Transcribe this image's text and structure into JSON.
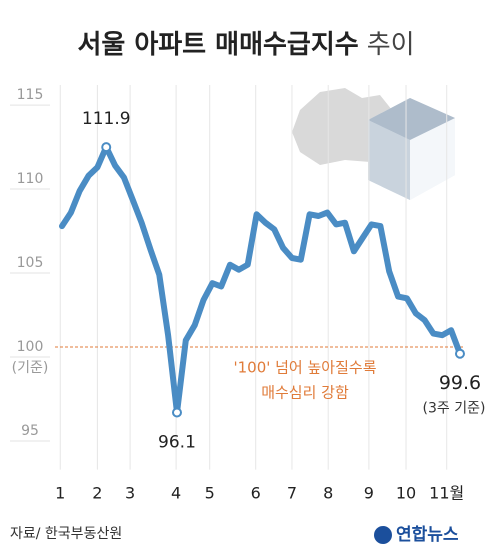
{
  "chart_data": {
    "type": "line",
    "title": "서울 아파트 매매수급지수",
    "title_suffix": "추이",
    "x": [
      0,
      1,
      2,
      3,
      4,
      5,
      6,
      7,
      8,
      9,
      10,
      11,
      12,
      13,
      14,
      15,
      16,
      17,
      18,
      19,
      20,
      21,
      22,
      23,
      24,
      25,
      26,
      27,
      28,
      29,
      30,
      31,
      32,
      33,
      34,
      35,
      36,
      37,
      38,
      39,
      40,
      41,
      42,
      43,
      44,
      45
    ],
    "values": [
      107.2,
      108.0,
      109.3,
      110.2,
      110.7,
      111.9,
      110.8,
      110.1,
      108.75,
      107.4,
      105.8,
      104.3,
      100.7,
      96.1,
      100.4,
      101.3,
      102.8,
      103.8,
      103.6,
      104.9,
      104.6,
      104.9,
      107.9,
      107.4,
      107.0,
      105.9,
      105.3,
      105.2,
      107.9,
      107.8,
      108.0,
      107.3,
      107.4,
      105.7,
      106.5,
      107.3,
      107.2,
      104.5,
      103.0,
      102.9,
      102.0,
      101.6,
      100.8,
      100.7,
      101.0,
      99.6
    ],
    "color": "#4a8cc4",
    "xlim": [
      -0.5,
      45.5
    ],
    "xticks": [
      {
        "value": -0.2,
        "label": "1"
      },
      {
        "value": 4,
        "label": "2"
      },
      {
        "value": 7.7,
        "label": "3"
      },
      {
        "value": 12.9,
        "label": "4"
      },
      {
        "value": 16.7,
        "label": "5"
      },
      {
        "value": 21.9,
        "label": "6"
      },
      {
        "value": 26,
        "label": "7"
      },
      {
        "value": 30.1,
        "label": "8"
      },
      {
        "value": 34.7,
        "label": "9"
      },
      {
        "value": 38.9,
        "label": "10"
      },
      {
        "value": 43.5,
        "label": "11월"
      }
    ],
    "ylim": [
      92.7,
      115.6
    ],
    "yticks": [
      95,
      100,
      105,
      110,
      115
    ],
    "baseline": 100,
    "baseline_label": "(기준)",
    "baseline_color": "#e07b39",
    "annotation_lines": [
      "'100' 넘어 높아질수록",
      "매수심리 강함"
    ],
    "last_note": "(3주 기준)",
    "labeled_points": [
      5,
      13,
      45
    ],
    "grid": true,
    "source": "자료/ 한국부동산원",
    "credit": "연합뉴스"
  }
}
